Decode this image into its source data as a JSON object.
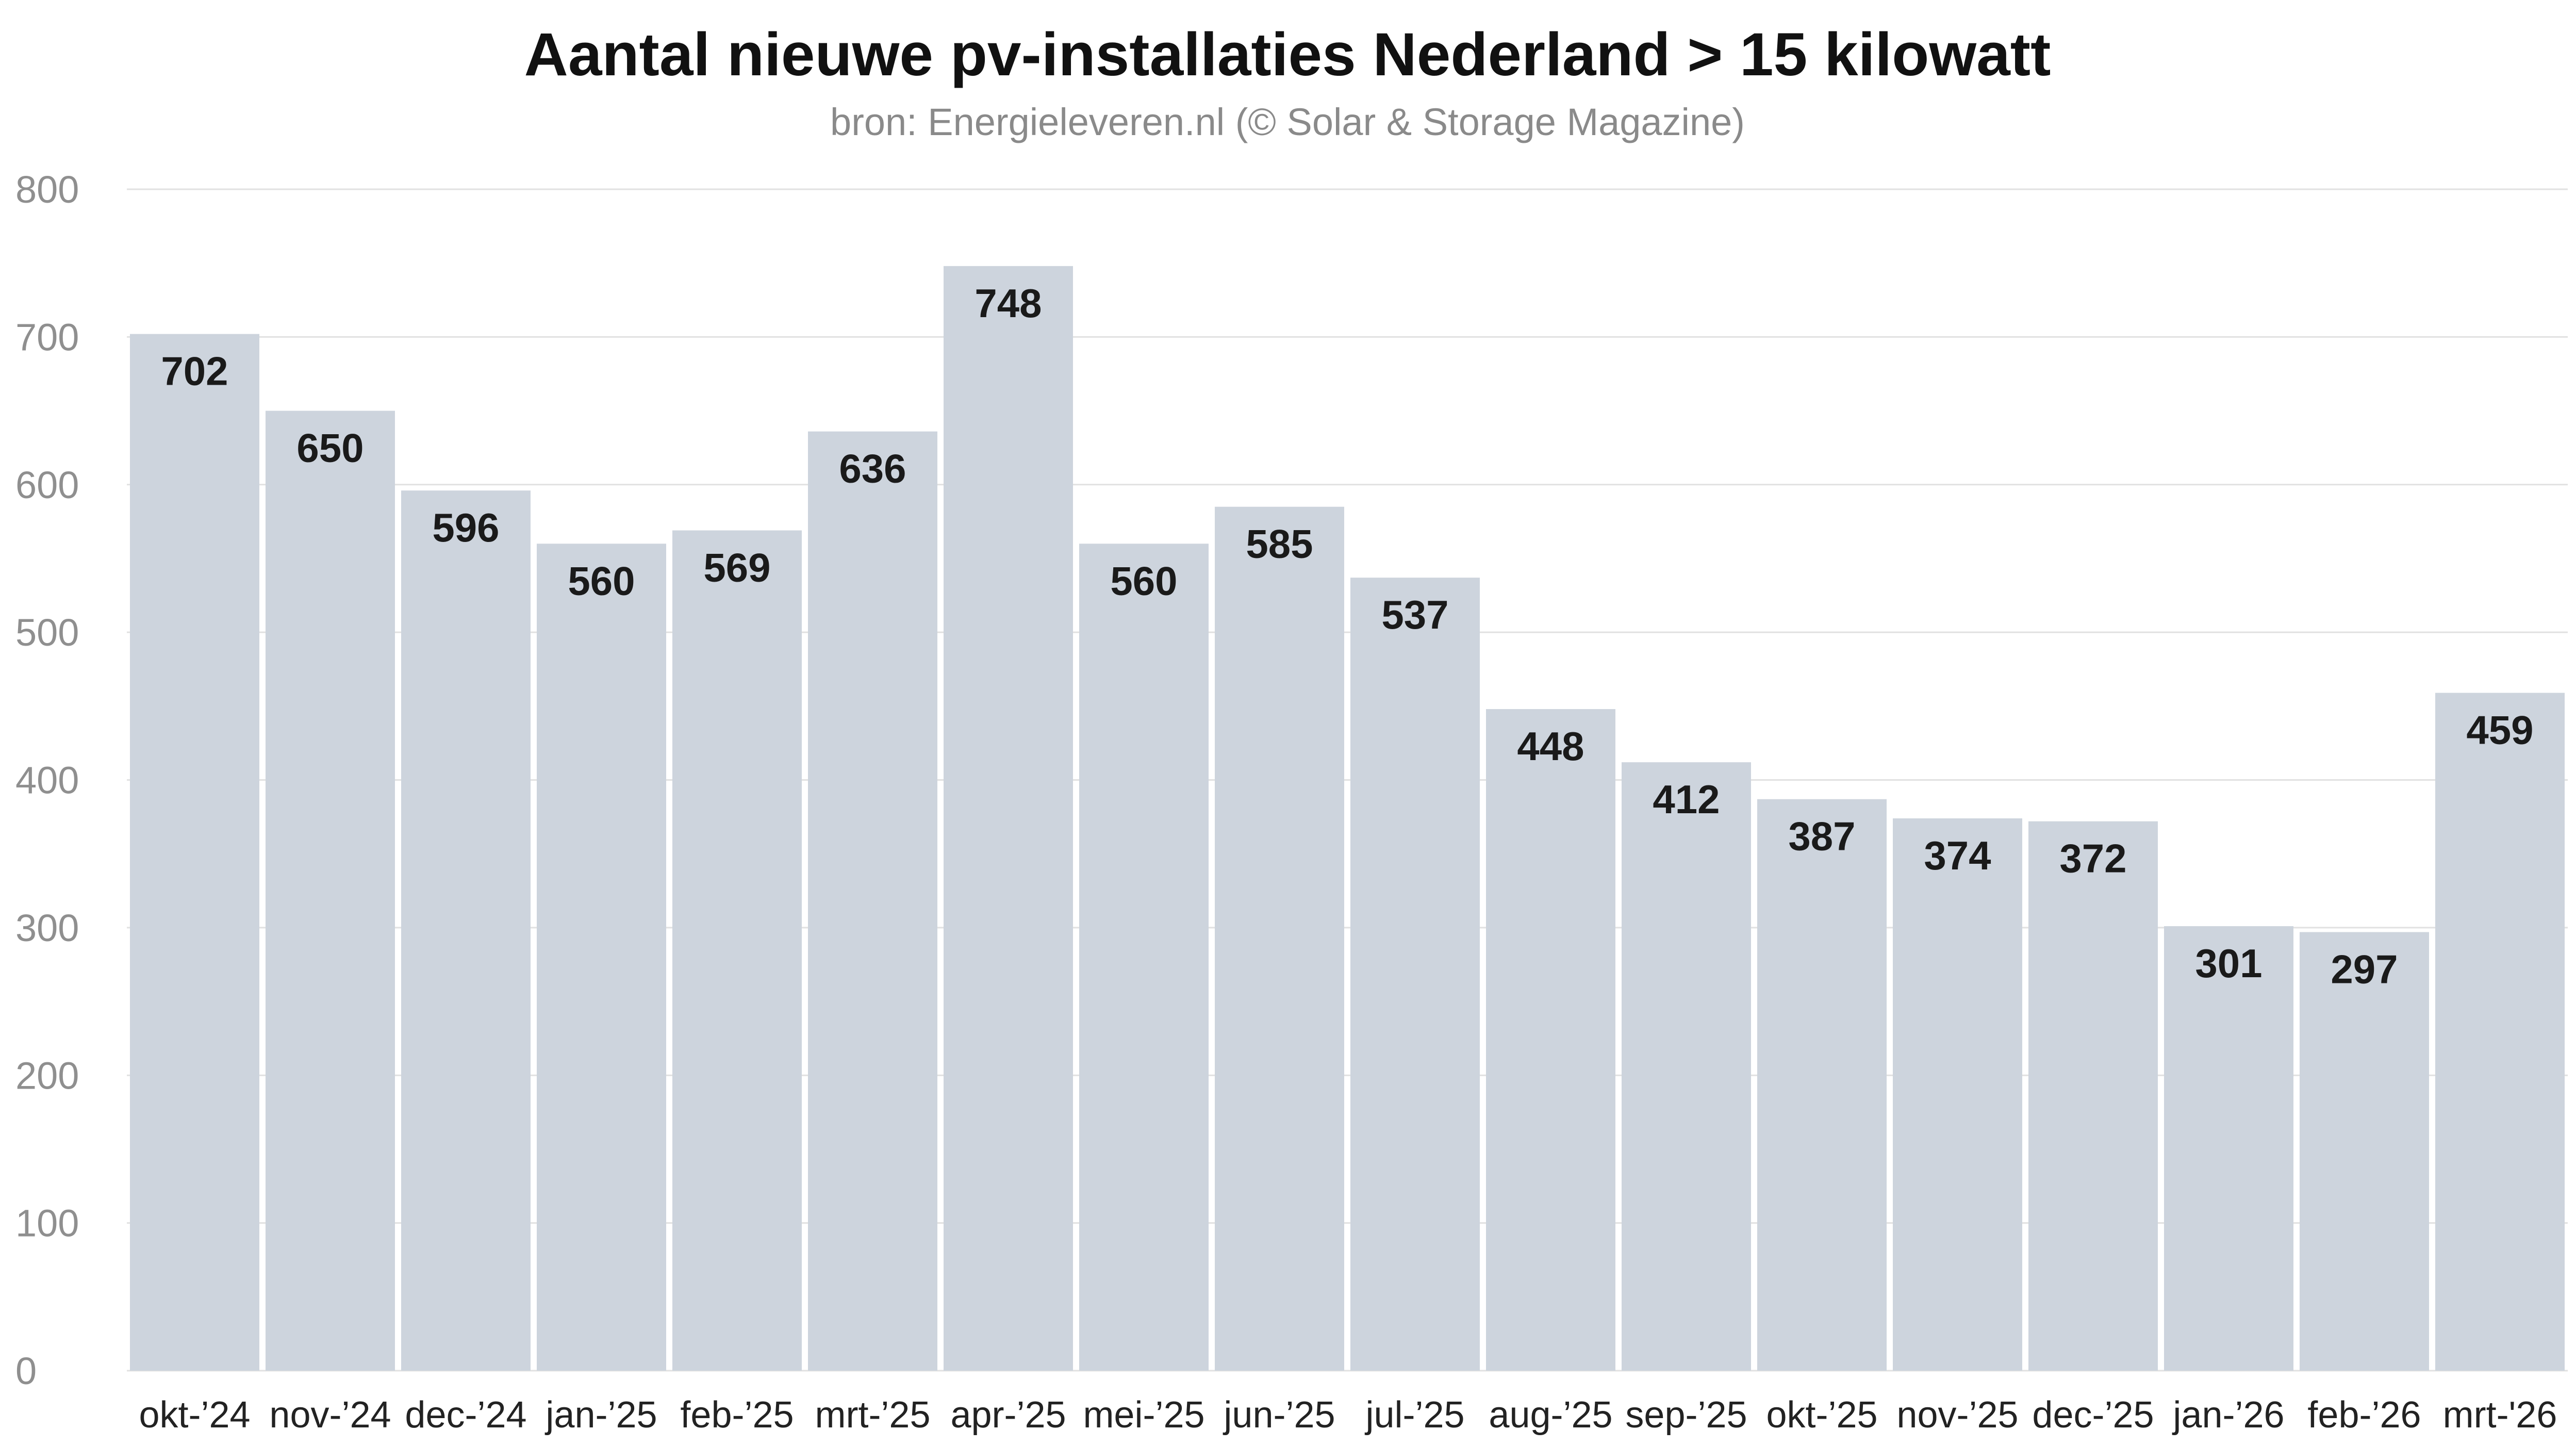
{
  "colors": {
    "bar": "#cdd4dd",
    "grid": "#e1e1e1",
    "axis_text": "#8f8f8f",
    "title_text": "#111111",
    "subtitle_text": "#8a8a8a",
    "label_text": "#1a1a1a",
    "background": "#ffffff"
  },
  "chart_data": {
    "type": "bar",
    "title": "Aantal nieuwe pv-installaties Nederland > 15 kilowatt",
    "subtitle": "bron: Energieleveren.nl (© Solar & Storage Magazine)",
    "xlabel": "",
    "ylabel": "",
    "categories": [
      "okt-’24",
      "nov-’24",
      "dec-’24",
      "jan-’25",
      "feb-’25",
      "mrt-’25",
      "apr-’25",
      "mei-’25",
      "jun-’25",
      "jul-’25",
      "aug-’25",
      "sep-’25",
      "okt-’25",
      "nov-’25",
      "dec-’25",
      "jan-’26",
      "feb-’26",
      "mrt-'26"
    ],
    "values": [
      702,
      650,
      596,
      560,
      569,
      636,
      748,
      560,
      585,
      537,
      448,
      412,
      387,
      374,
      372,
      301,
      297,
      459
    ],
    "ylim": [
      0,
      800
    ],
    "yticks": [
      0,
      100,
      200,
      300,
      400,
      500,
      600,
      700,
      800
    ],
    "grid": true,
    "legend": "none",
    "data_labels": "inside-top"
  }
}
